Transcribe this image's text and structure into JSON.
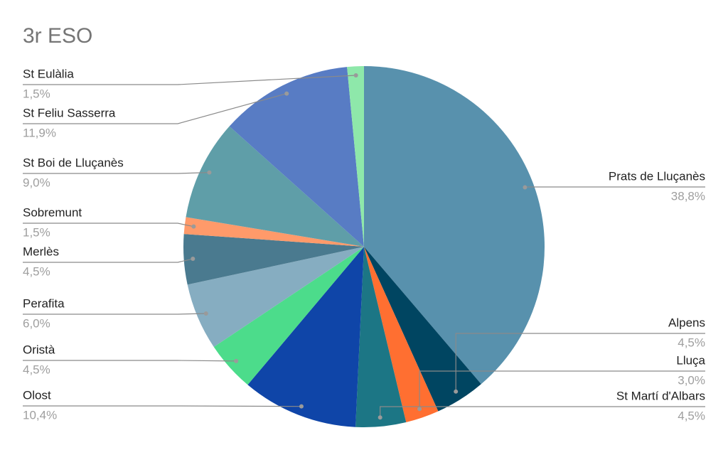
{
  "chart_data": {
    "type": "pie",
    "title": "3r ESO",
    "categories": [
      "Prats de Lluçanès",
      "Alpens",
      "Lluça",
      "St Martí d'Albars",
      "Olost",
      "Oristà",
      "Perafita",
      "Merlès",
      "Sobremunt",
      "St Boi de Lluçanès",
      "St Feliu Sasserra",
      "St Eulàlia"
    ],
    "values": [
      38.8,
      4.5,
      3.0,
      4.5,
      10.4,
      4.5,
      6.0,
      4.5,
      1.5,
      9.0,
      11.9,
      1.5
    ],
    "value_labels": [
      "38,8%",
      "4,5%",
      "3,0%",
      "4,5%",
      "10,4%",
      "4,5%",
      "6,0%",
      "4,5%",
      "1,5%",
      "9,0%",
      "11,9%",
      "1,5%"
    ],
    "colors": [
      "#5891ad",
      "#004561",
      "#ff6f31",
      "#1c7685",
      "#0f45a8",
      "#4cdc8b",
      "#86adc1",
      "#4a7a8f",
      "#ff9a6a",
      "#5f9ea8",
      "#587cc4",
      "#8ee8aa"
    ]
  }
}
